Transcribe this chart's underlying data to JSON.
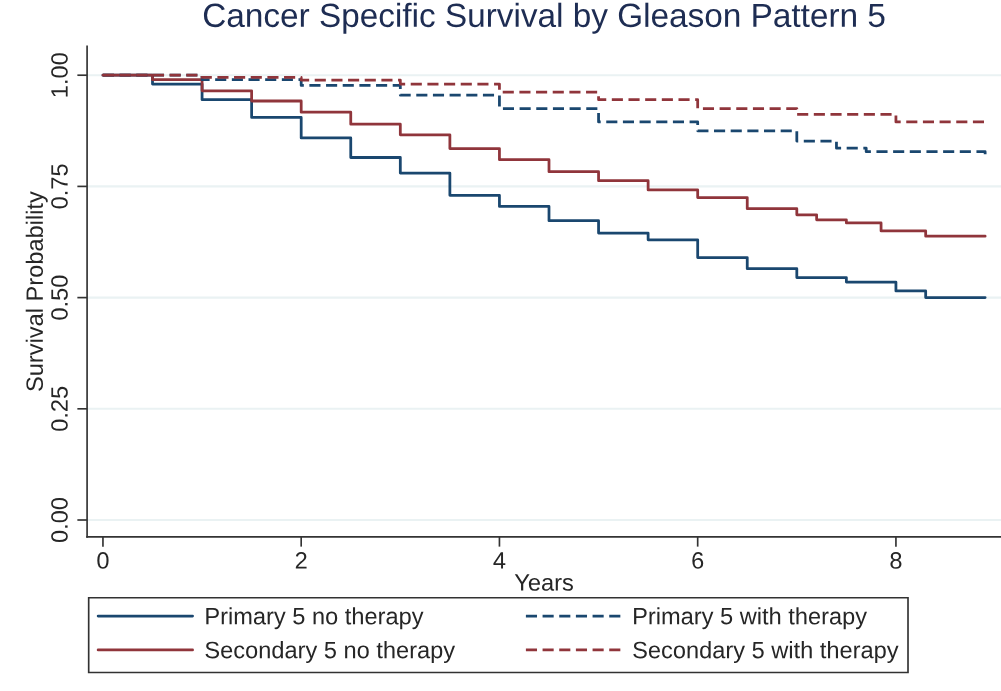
{
  "chart_data": {
    "type": "step",
    "title": "Cancer Specific Survival by Gleason Pattern 5",
    "xlabel": "Years",
    "ylabel": "Survival Probability",
    "xlim": [
      -0.16,
      9.06
    ],
    "xticks": [
      0,
      2,
      4,
      6,
      8
    ],
    "ylim": [
      -0.038,
      1.065
    ],
    "yticks": [
      {
        "value": 0,
        "label": "0.00"
      },
      {
        "value": 0.25,
        "label": "0.25"
      },
      {
        "value": 0.5,
        "label": "0.50"
      },
      {
        "value": 0.75,
        "label": "0.75"
      },
      {
        "value": 1,
        "label": "1.00"
      }
    ],
    "grid": "y",
    "legend": "bottom",
    "series": [
      {
        "name": "Primary 5 no therapy",
        "color": "#1a476f",
        "line_style": "solid",
        "x": [
          0,
          0.5,
          1,
          1.5,
          2,
          2.5,
          3,
          3.5,
          4,
          4.5,
          5,
          5.5,
          6,
          6.5,
          7,
          7.5,
          8,
          8.3,
          8.9
        ],
        "values": [
          1.0,
          0.98,
          0.945,
          0.905,
          0.859,
          0.815,
          0.78,
          0.73,
          0.705,
          0.673,
          0.645,
          0.63,
          0.59,
          0.565,
          0.545,
          0.535,
          0.515,
          0.5,
          0.5
        ]
      },
      {
        "name": "Secondary 5 no therapy",
        "color": "#90353b",
        "line_style": "solid",
        "x": [
          0,
          0.5,
          1,
          1.5,
          2,
          2.5,
          3,
          3.5,
          4,
          4.5,
          5,
          5.5,
          6,
          6.5,
          7,
          7.2,
          7.5,
          7.85,
          8.3,
          8.9
        ],
        "values": [
          1.0,
          0.99,
          0.965,
          0.942,
          0.917,
          0.89,
          0.866,
          0.835,
          0.81,
          0.783,
          0.763,
          0.742,
          0.725,
          0.7,
          0.686,
          0.675,
          0.668,
          0.65,
          0.638,
          0.638
        ]
      },
      {
        "name": "Primary 5 with therapy",
        "color": "#1a476f",
        "line_style": "dashed",
        "x": [
          0,
          1,
          2,
          3,
          4,
          5,
          6,
          7,
          7.4,
          7.7,
          8.9
        ],
        "values": [
          1.0,
          0.99,
          0.977,
          0.955,
          0.925,
          0.895,
          0.875,
          0.852,
          0.836,
          0.828,
          0.821
        ]
      },
      {
        "name": "Secondary 5 with therapy",
        "color": "#90353b",
        "line_style": "dashed",
        "x": [
          0,
          1,
          2,
          3,
          4,
          5,
          6,
          7,
          8,
          8.9
        ],
        "values": [
          1.0,
          0.995,
          0.989,
          0.98,
          0.962,
          0.945,
          0.925,
          0.912,
          0.895,
          0.891
        ]
      }
    ]
  }
}
